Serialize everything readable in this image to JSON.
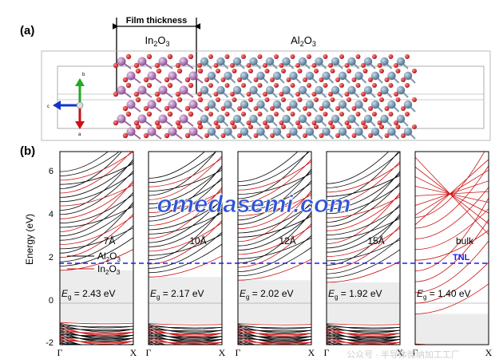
{
  "panel_a": {
    "label": "(a)",
    "film_thickness": "Film thickness",
    "in2o3": {
      "base": "In",
      "sub1": "2",
      "mid": "O",
      "sub2": "3"
    },
    "al2o3": {
      "base": "Al",
      "sub1": "2",
      "mid": "O",
      "sub2": "3"
    },
    "axes": {
      "b": "b",
      "c": "c",
      "a": "a"
    }
  },
  "panel_b": {
    "label": "(b)",
    "ylabel": "Energy (eV)",
    "yticks": [
      "6",
      "4",
      "2",
      "0",
      "-2"
    ],
    "x_start": "Γ",
    "x_end": "X",
    "tnl_label": "TNL",
    "legend": {
      "al": "Al",
      "al_sub1": "2",
      "al_mid": "O",
      "al_sub2": "3",
      "in": "In",
      "in_sub1": "2",
      "in_mid": "O",
      "in_sub2": "3"
    },
    "subpanels": [
      {
        "thickness": "7Å",
        "eg_value": "= 2.43 eV"
      },
      {
        "thickness": "10Å",
        "eg_value": "= 2.17 eV"
      },
      {
        "thickness": "12Å",
        "eg_value": "= 2.02 eV"
      },
      {
        "thickness": "15Å",
        "eg_value": "= 1.92 eV"
      },
      {
        "thickness": "bulk",
        "eg_value": "= 1.40 eV"
      }
    ],
    "eg_symbol": "E",
    "eg_sub": "g"
  },
  "watermark": "omedasemi.com",
  "footer_watermark": "公众号 · 半导体微纳加工工厂",
  "colors": {
    "al_lines": "#000000",
    "in_lines": "#cc1111",
    "tnl": "#1a1aff",
    "gap": "#ececec",
    "watermark": "#2f54d6",
    "al_atom": "#6b8fa8",
    "in_atom": "#b07fb6",
    "o_atom": "#d8282b"
  },
  "chart_data": {
    "type": "line",
    "title": "",
    "xlabel": "",
    "ylabel": "Energy (eV)",
    "ylim": [
      -2,
      7
    ],
    "x": [
      "Γ",
      "X"
    ],
    "tnl_energy": 1.7,
    "bandgaps_eV": [
      {
        "panel": "7Å",
        "Eg": 2.43
      },
      {
        "panel": "10Å",
        "Eg": 2.17
      },
      {
        "panel": "12Å",
        "Eg": 2.02
      },
      {
        "panel": "15Å",
        "Eg": 1.92
      },
      {
        "panel": "bulk",
        "Eg": 1.4
      }
    ],
    "series": [
      {
        "name": "Al2O3",
        "color": "#000000"
      },
      {
        "name": "In2O3",
        "color": "#cc1111"
      }
    ]
  }
}
